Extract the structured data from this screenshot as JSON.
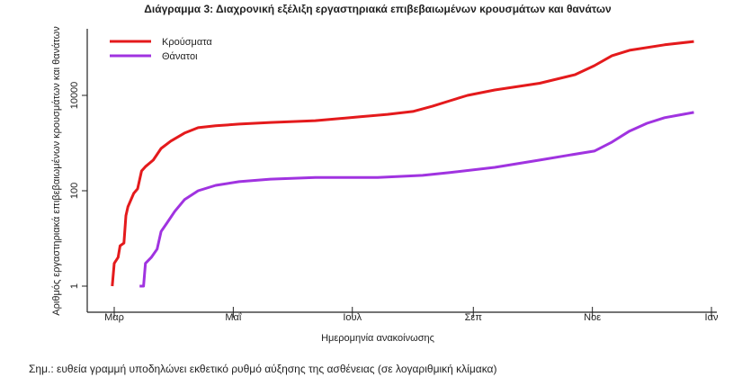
{
  "chart_data": {
    "type": "line",
    "title": "Διάγραμμα 3: Διαχρονική εξέλιξη εργαστηριακά επιβεβαιωμένων κρουσμάτων και θανάτων",
    "xlabel": "Ημερομηνία ανακοίνωσης",
    "ylabel": "Αριθμός εργαστηριακά επιβεβαιωμένων κρουσμάτων και θανάτων",
    "yscale": "log",
    "ylim": [
      0.5,
      200000
    ],
    "x_unit": "days since 1 March",
    "xlim": [
      -12,
      310
    ],
    "x_ticks": [
      {
        "day": 0,
        "label": "Μαρ"
      },
      {
        "day": 61,
        "label": "Μαΐ"
      },
      {
        "day": 122,
        "label": "Ιουλ"
      },
      {
        "day": 184,
        "label": "Σεπ"
      },
      {
        "day": 245,
        "label": "Νοε"
      },
      {
        "day": 306,
        "label": "Ιαν"
      }
    ],
    "y_ticks": [
      {
        "value": 1,
        "label": "1"
      },
      {
        "value": 100,
        "label": "100"
      },
      {
        "value": 10000,
        "label": "10000"
      }
    ],
    "legend_position": "top-left",
    "series": [
      {
        "name": "Κρούσματα",
        "color": "#e41a1c",
        "x": [
          -1,
          0,
          2,
          3,
          5,
          6,
          7,
          10,
          12,
          14,
          16,
          20,
          24,
          29,
          36,
          43,
          52,
          64,
          80,
          103,
          126,
          140,
          153,
          163,
          172,
          181,
          195,
          218,
          236,
          246,
          255,
          264,
          282,
          297
        ],
        "values": [
          1,
          3,
          4,
          7,
          8,
          30,
          46,
          88,
          110,
          260,
          320,
          440,
          770,
          1100,
          1620,
          2100,
          2300,
          2500,
          2700,
          2950,
          3550,
          4000,
          4600,
          5900,
          7700,
          10000,
          13000,
          18000,
          27000,
          42000,
          68000,
          88000,
          115000,
          135000
        ]
      },
      {
        "name": "Θάνατοι",
        "color": "#a033e0",
        "x": [
          13,
          15,
          16,
          19,
          22,
          24,
          27,
          31,
          36,
          43,
          52,
          64,
          80,
          103,
          135,
          158,
          172,
          195,
          218,
          232,
          246,
          255,
          264,
          273,
          282,
          297
        ],
        "values": [
          1,
          1,
          3,
          4,
          6,
          14,
          21,
          37,
          65,
          100,
          130,
          155,
          175,
          190,
          190,
          210,
          240,
          310,
          440,
          550,
          680,
          1050,
          1780,
          2600,
          3400,
          4400
        ]
      }
    ]
  },
  "note": "Σημ.: ευθεία γραμμή υποδηλώνει εκθετικό ρυθμό αύξησης της ασθένειας (σε λογαριθμική κλίμακα)"
}
